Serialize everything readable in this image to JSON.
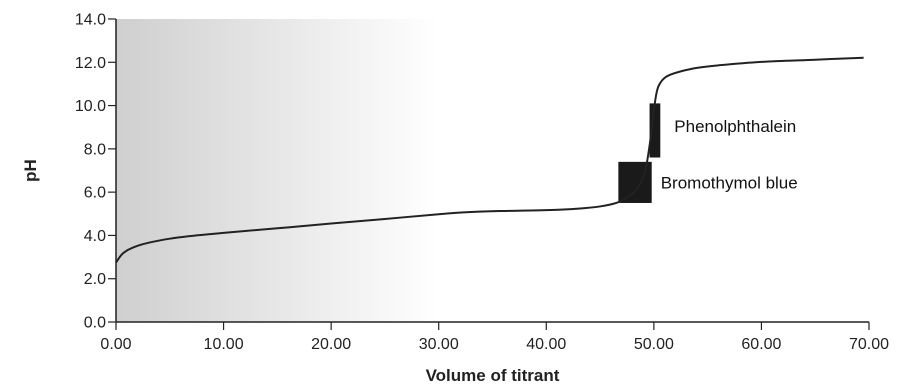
{
  "chart_data": {
    "type": "line",
    "title": "",
    "xlabel": "Volume of titrant",
    "ylabel": "pH",
    "xlim": [
      0,
      70
    ],
    "ylim": [
      0,
      14
    ],
    "x_ticks": [
      "0.00",
      "10.00",
      "20.00",
      "30.00",
      "40.00",
      "50.00",
      "60.00",
      "70.00"
    ],
    "y_ticks": [
      "0.0",
      "2.0",
      "4.0",
      "6.0",
      "8.0",
      "10.0",
      "12.0",
      "14.0"
    ],
    "grid": false,
    "shaded_region": {
      "x": [
        0,
        30
      ],
      "color_start": "#cfcfcf",
      "color_end": "#ffffff"
    },
    "series": [
      {
        "x": [
          0,
          0.5,
          1,
          2,
          3,
          5,
          7.5,
          10,
          15,
          20,
          25,
          30,
          33,
          36,
          40,
          43,
          45,
          46.5,
          47.5,
          48.5,
          49.2,
          49.7,
          50.0,
          50.3,
          50.6,
          51.0,
          51.5,
          52.5,
          54,
          56,
          60,
          65,
          69.5
        ],
        "y": [
          2.75,
          3.1,
          3.3,
          3.52,
          3.66,
          3.85,
          4.0,
          4.12,
          4.33,
          4.55,
          4.76,
          4.98,
          5.08,
          5.13,
          5.17,
          5.24,
          5.34,
          5.5,
          5.75,
          6.2,
          7.0,
          8.5,
          9.8,
          10.7,
          11.05,
          11.28,
          11.42,
          11.58,
          11.74,
          11.86,
          12.02,
          12.12,
          12.21
        ],
        "color": "#222222"
      }
    ],
    "annotations": [
      {
        "label": "Phenolphthalein",
        "x_range": [
          49.6,
          50.6
        ],
        "y_range": [
          7.6,
          10.1
        ]
      },
      {
        "label": "Bromothymol blue",
        "x_range": [
          46.7,
          49.8
        ],
        "y_range": [
          5.5,
          7.4
        ]
      }
    ]
  }
}
